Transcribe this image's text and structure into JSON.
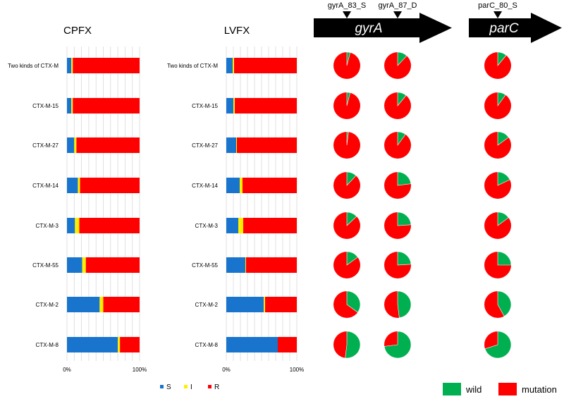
{
  "colors": {
    "S": "#1874cd",
    "I": "#ffee00",
    "R": "#ff0000",
    "wild": "#00b050",
    "mutation": "#ff0000",
    "gene_fill": "#000000",
    "gene_text": "#ffffff",
    "grid": "#d9d9d9"
  },
  "genes": {
    "gyrA": "gyrA",
    "parC": "parC",
    "sites": [
      "gyrA_83_S",
      "gyrA_87_D",
      "parC_80_S"
    ]
  },
  "legend_susceptibility": [
    "S",
    "I",
    "R"
  ],
  "legend_mutation": [
    "wild",
    "mutation"
  ],
  "chart_data": [
    {
      "type": "bar",
      "orientation": "horizontal",
      "stacked": true,
      "title": "CPFX",
      "categories": [
        "Two kinds of CTX-M",
        "CTX-M-15",
        "CTX-M-27",
        "CTX-M-14",
        "CTX-M-3",
        "CTX-M-55",
        "CTX-M-2",
        "CTX-M-8"
      ],
      "series": [
        {
          "name": "S",
          "values": [
            6,
            6,
            10,
            15,
            11,
            21,
            45,
            70
          ]
        },
        {
          "name": "I",
          "values": [
            2,
            2,
            3,
            3,
            6,
            5,
            5,
            3
          ]
        },
        {
          "name": "R",
          "values": [
            92,
            92,
            87,
            82,
            83,
            74,
            50,
            27
          ]
        }
      ],
      "xlim": [
        0,
        100
      ],
      "xticks": [
        "0%",
        "100%"
      ],
      "grid": true,
      "legend": "bottom"
    },
    {
      "type": "bar",
      "orientation": "horizontal",
      "stacked": true,
      "title": "LVFX",
      "categories": [
        "Two kinds of CTX-M",
        "CTX-M-15",
        "CTX-M-27",
        "CTX-M-14",
        "CTX-M-3",
        "CTX-M-55",
        "CTX-M-2",
        "CTX-M-8"
      ],
      "series": [
        {
          "name": "S",
          "values": [
            9,
            10,
            14,
            19,
            17,
            27,
            53,
            73
          ]
        },
        {
          "name": "I",
          "values": [
            2,
            2,
            1,
            4,
            7,
            1,
            2,
            0
          ]
        },
        {
          "name": "R",
          "values": [
            89,
            88,
            85,
            77,
            76,
            72,
            45,
            27
          ]
        }
      ],
      "xlim": [
        0,
        100
      ],
      "xticks": [
        "0%",
        "100%"
      ],
      "grid": true
    },
    {
      "type": "pie",
      "site": "gyrA_83_S",
      "categories": [
        "Two kinds of CTX-M",
        "CTX-M-15",
        "CTX-M-27",
        "CTX-M-14",
        "CTX-M-3",
        "CTX-M-55",
        "CTX-M-2",
        "CTX-M-8"
      ],
      "series": [
        {
          "name": "wild",
          "values": [
            4,
            4,
            2,
            12,
            13,
            15,
            35,
            52
          ]
        },
        {
          "name": "mutation",
          "values": [
            96,
            96,
            98,
            88,
            87,
            85,
            65,
            48
          ]
        }
      ],
      "legend": "bottom-right"
    },
    {
      "type": "pie",
      "site": "gyrA_87_D",
      "categories": [
        "Two kinds of CTX-M",
        "CTX-M-15",
        "CTX-M-27",
        "CTX-M-14",
        "CTX-M-3",
        "CTX-M-55",
        "CTX-M-2",
        "CTX-M-8"
      ],
      "series": [
        {
          "name": "wild",
          "values": [
            12,
            11,
            10,
            23,
            24,
            24,
            48,
            73
          ]
        },
        {
          "name": "mutation",
          "values": [
            88,
            89,
            90,
            77,
            76,
            76,
            52,
            27
          ]
        }
      ]
    },
    {
      "type": "pie",
      "site": "parC_80_S",
      "categories": [
        "Two kinds of CTX-M",
        "CTX-M-15",
        "CTX-M-27",
        "CTX-M-14",
        "CTX-M-3",
        "CTX-M-55",
        "CTX-M-2",
        "CTX-M-8"
      ],
      "series": [
        {
          "name": "wild",
          "values": [
            11,
            10,
            15,
            18,
            15,
            25,
            42,
            70
          ]
        },
        {
          "name": "mutation",
          "values": [
            89,
            90,
            85,
            82,
            85,
            75,
            58,
            30
          ]
        }
      ]
    }
  ]
}
